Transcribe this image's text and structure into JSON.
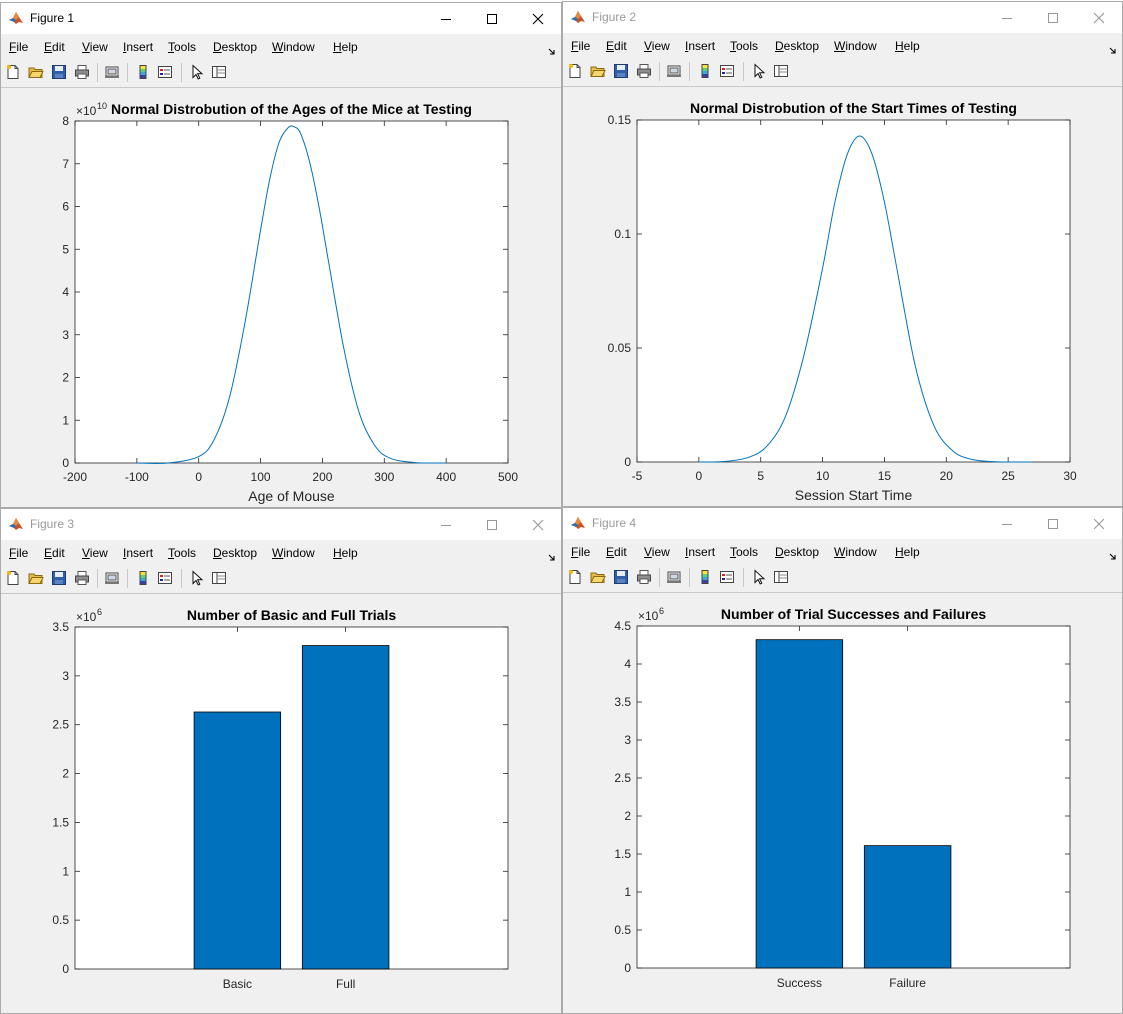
{
  "menu": [
    "File",
    "Edit",
    "View",
    "Insert",
    "Tools",
    "Desktop",
    "Window",
    "Help"
  ],
  "figures": [
    {
      "title": "Figure 1",
      "active": true,
      "chart_data": {
        "type": "line",
        "title": "Normal Distrobution of the Ages of the Mice at Testing",
        "xlabel": "Age of Mouse",
        "ylabel": "",
        "xlim": [
          -200,
          500
        ],
        "ylim": [
          0,
          8
        ],
        "xticks": [
          "-200",
          "-100",
          "0",
          "100",
          "200",
          "300",
          "400",
          "500"
        ],
        "yticks": [
          "0",
          "1",
          "2",
          "3",
          "4",
          "5",
          "6",
          "7",
          "8"
        ],
        "exponent": "10",
        "grid": false,
        "series": [
          {
            "x": [
              -100,
              -50,
              0,
              25,
              50,
              75,
              100,
              115,
              130,
              145,
              155,
              165,
              180,
              195,
              210,
              235,
              260,
              285,
              310,
              350,
              400
            ],
            "y": [
              0.0,
              0.0,
              0.15,
              0.55,
              1.55,
              3.3,
              5.45,
              6.65,
              7.5,
              7.85,
              7.86,
              7.7,
              7.0,
              5.95,
              4.7,
              2.65,
              1.15,
              0.4,
              0.11,
              0.01,
              0.0
            ]
          }
        ]
      }
    },
    {
      "title": "Figure 2",
      "active": false,
      "chart_data": {
        "type": "line",
        "title": "Normal Distrobution of the Start Times of Testing",
        "xlabel": "Session Start Time",
        "ylabel": "",
        "xlim": [
          -5,
          30
        ],
        "ylim": [
          0,
          0.15
        ],
        "xticks": [
          "-5",
          "0",
          "5",
          "10",
          "15",
          "20",
          "25",
          "30"
        ],
        "yticks": [
          "0",
          "0.05",
          "0.1",
          "0.15"
        ],
        "exponent": "",
        "grid": false,
        "series": [
          {
            "x": [
              0,
              2,
              4,
              5.5,
              7,
              8.5,
              10,
              11,
              12,
              13,
              14,
              15,
              16,
              17.5,
              19,
              20.5,
              22,
              24,
              27
            ],
            "y": [
              0.0,
              0.0002,
              0.002,
              0.007,
              0.02,
              0.047,
              0.085,
              0.114,
              0.135,
              0.143,
              0.135,
              0.114,
              0.085,
              0.042,
              0.016,
              0.005,
              0.0012,
              0.0001,
              0.0
            ]
          }
        ]
      }
    },
    {
      "title": "Figure 3",
      "active": false,
      "chart_data": {
        "type": "bar",
        "title": "Number of Basic and Full Trials",
        "xlabel": "",
        "ylabel": "",
        "categories": [
          "Basic",
          "Full"
        ],
        "values": [
          2.63,
          3.31
        ],
        "ylim": [
          0,
          3.5
        ],
        "yticks": [
          "0",
          "0.5",
          "1",
          "1.5",
          "2",
          "2.5",
          "3",
          "3.5"
        ],
        "exponent": "6",
        "bar_color": "#0072bd",
        "grid": false
      }
    },
    {
      "title": "Figure 4",
      "active": false,
      "chart_data": {
        "type": "bar",
        "title": "Number of Trial Successes and Failures",
        "xlabel": "",
        "ylabel": "",
        "categories": [
          "Success",
          "Failure"
        ],
        "values": [
          4.32,
          1.61
        ],
        "ylim": [
          0,
          4.5
        ],
        "yticks": [
          "0",
          "0.5",
          "1",
          "1.5",
          "2",
          "2.5",
          "3",
          "3.5",
          "4",
          "4.5"
        ],
        "exponent": "6",
        "bar_color": "#0072bd",
        "grid": false
      }
    }
  ]
}
